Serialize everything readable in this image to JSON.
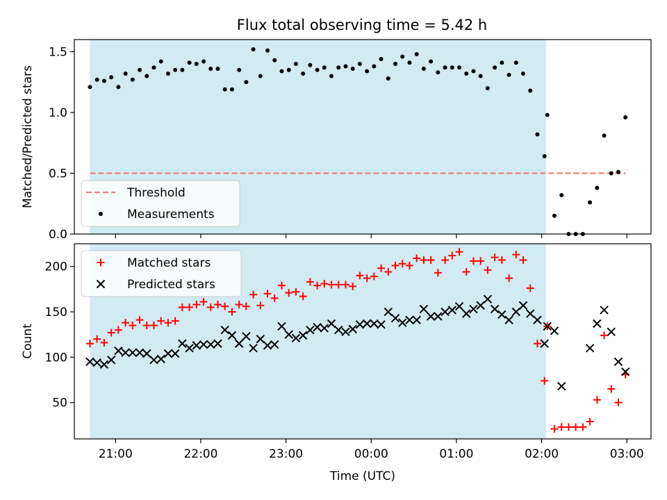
{
  "title": "Flux total observing time = 5.42 h",
  "chart_data": [
    {
      "type": "scatter",
      "ylabel": "Matched/Predicted stars",
      "xlabel": "",
      "xlim": [
        "20:31",
        "03:17"
      ],
      "ylim": [
        0,
        1.6
      ],
      "yticks": [
        0.0,
        0.5,
        1.0,
        1.5
      ],
      "ytick_labels": [
        "0.0",
        "0.5",
        "1.0",
        "1.5"
      ],
      "shaded_span": [
        "20:42",
        "02:03"
      ],
      "shaded_color": "#add8e6",
      "threshold": {
        "name": "Threshold",
        "value": 0.5,
        "x_range": [
          "20:42",
          "02:59"
        ],
        "color": "#f08080",
        "style": "dashed"
      },
      "legend": {
        "placement": "lower-left",
        "entries": [
          "Threshold",
          "Measurements"
        ]
      },
      "series": [
        {
          "name": "Measurements",
          "marker": "dot",
          "color": "#000000",
          "points": [
            [
              "20:42",
              1.21
            ],
            [
              "20:47",
              1.27
            ],
            [
              "20:52",
              1.26
            ],
            [
              "20:57",
              1.29
            ],
            [
              "21:02",
              1.21
            ],
            [
              "21:07",
              1.32
            ],
            [
              "21:12",
              1.27
            ],
            [
              "21:17",
              1.35
            ],
            [
              "21:22",
              1.3
            ],
            [
              "21:27",
              1.37
            ],
            [
              "21:32",
              1.42
            ],
            [
              "21:37",
              1.32
            ],
            [
              "21:42",
              1.35
            ],
            [
              "21:47",
              1.35
            ],
            [
              "21:52",
              1.41
            ],
            [
              "21:57",
              1.4
            ],
            [
              "22:02",
              1.42
            ],
            [
              "22:07",
              1.36
            ],
            [
              "22:12",
              1.36
            ],
            [
              "22:17",
              1.19
            ],
            [
              "22:22",
              1.19
            ],
            [
              "22:27",
              1.35
            ],
            [
              "22:32",
              1.25
            ],
            [
              "22:37",
              1.52
            ],
            [
              "22:42",
              1.3
            ],
            [
              "22:47",
              1.51
            ],
            [
              "22:52",
              1.43
            ],
            [
              "22:57",
              1.34
            ],
            [
              "23:02",
              1.35
            ],
            [
              "23:07",
              1.4
            ],
            [
              "23:12",
              1.32
            ],
            [
              "23:17",
              1.39
            ],
            [
              "23:22",
              1.35
            ],
            [
              "23:27",
              1.37
            ],
            [
              "23:32",
              1.3
            ],
            [
              "23:37",
              1.37
            ],
            [
              "23:42",
              1.38
            ],
            [
              "23:47",
              1.36
            ],
            [
              "23:52",
              1.4
            ],
            [
              "23:57",
              1.34
            ],
            [
              "00:02",
              1.38
            ],
            [
              "00:07",
              1.44
            ],
            [
              "00:12",
              1.28
            ],
            [
              "00:17",
              1.4
            ],
            [
              "00:22",
              1.46
            ],
            [
              "00:27",
              1.41
            ],
            [
              "00:32",
              1.48
            ],
            [
              "00:37",
              1.36
            ],
            [
              "00:42",
              1.42
            ],
            [
              "00:47",
              1.33
            ],
            [
              "00:52",
              1.37
            ],
            [
              "00:57",
              1.37
            ],
            [
              "01:02",
              1.37
            ],
            [
              "01:07",
              1.32
            ],
            [
              "01:12",
              1.34
            ],
            [
              "01:17",
              1.3
            ],
            [
              "01:22",
              1.2
            ],
            [
              "01:27",
              1.37
            ],
            [
              "01:32",
              1.41
            ],
            [
              "01:37",
              1.31
            ],
            [
              "01:42",
              1.41
            ],
            [
              "01:47",
              1.32
            ],
            [
              "01:52",
              1.18
            ],
            [
              "01:57",
              0.82
            ],
            [
              "02:02",
              0.64
            ],
            [
              "02:04",
              0.98
            ],
            [
              "02:09",
              0.15
            ],
            [
              "02:14",
              0.32
            ],
            [
              "02:19",
              0.0
            ],
            [
              "02:24",
              0.0
            ],
            [
              "02:29",
              0.0
            ],
            [
              "02:34",
              0.26
            ],
            [
              "02:39",
              0.38
            ],
            [
              "02:44",
              0.81
            ],
            [
              "02:49",
              0.5
            ],
            [
              "02:54",
              0.51
            ],
            [
              "02:59",
              0.96
            ]
          ]
        }
      ]
    },
    {
      "type": "scatter",
      "ylabel": "Count",
      "xlabel": "Time (UTC)",
      "xlim": [
        "20:31",
        "03:17"
      ],
      "ylim": [
        10,
        225
      ],
      "yticks": [
        50,
        100,
        150,
        200
      ],
      "ytick_labels": [
        "50",
        "100",
        "150",
        "200"
      ],
      "xticks": [
        "21:00",
        "22:00",
        "23:00",
        "00:00",
        "01:00",
        "02:00",
        "03:00"
      ],
      "xtick_labels": [
        "21:00",
        "22:00",
        "23:00",
        "00:00",
        "01:00",
        "02:00",
        "03:00"
      ],
      "shaded_span": [
        "20:42",
        "02:03"
      ],
      "shaded_color": "#add8e6",
      "legend": {
        "placement": "upper-left",
        "entries": [
          "Matched stars",
          "Predicted stars"
        ]
      },
      "series": [
        {
          "name": "Matched stars",
          "marker": "plus",
          "color": "#ff0000",
          "points": [
            [
              "20:42",
              115
            ],
            [
              "20:47",
              120
            ],
            [
              "20:52",
              116
            ],
            [
              "20:57",
              127
            ],
            [
              "21:02",
              130
            ],
            [
              "21:07",
              138
            ],
            [
              "21:12",
              135
            ],
            [
              "21:17",
              141
            ],
            [
              "21:22",
              135
            ],
            [
              "21:27",
              135
            ],
            [
              "21:32",
              140
            ],
            [
              "21:37",
              138
            ],
            [
              "21:42",
              140
            ],
            [
              "21:47",
              155
            ],
            [
              "21:52",
              155
            ],
            [
              "21:57",
              158
            ],
            [
              "22:02",
              161
            ],
            [
              "22:07",
              155
            ],
            [
              "22:12",
              158
            ],
            [
              "22:17",
              156
            ],
            [
              "22:22",
              150
            ],
            [
              "22:27",
              158
            ],
            [
              "22:32",
              156
            ],
            [
              "22:37",
              169
            ],
            [
              "22:42",
              157
            ],
            [
              "22:47",
              170
            ],
            [
              "22:52",
              165
            ],
            [
              "22:57",
              179
            ],
            [
              "23:02",
              171
            ],
            [
              "23:07",
              172
            ],
            [
              "23:12",
              167
            ],
            [
              "23:17",
              183
            ],
            [
              "23:22",
              179
            ],
            [
              "23:27",
              181
            ],
            [
              "23:32",
              180
            ],
            [
              "23:37",
              180
            ],
            [
              "23:42",
              180
            ],
            [
              "23:47",
              178
            ],
            [
              "23:52",
              190
            ],
            [
              "23:57",
              187
            ],
            [
              "00:02",
              189
            ],
            [
              "00:07",
              198
            ],
            [
              "00:12",
              194
            ],
            [
              "00:17",
              201
            ],
            [
              "00:22",
              203
            ],
            [
              "00:27",
              201
            ],
            [
              "00:32",
              209
            ],
            [
              "00:37",
              207
            ],
            [
              "00:42",
              207
            ],
            [
              "00:47",
              193
            ],
            [
              "00:52",
              207
            ],
            [
              "00:57",
              212
            ],
            [
              "01:02",
              216
            ],
            [
              "01:07",
              194
            ],
            [
              "01:12",
              206
            ],
            [
              "01:17",
              206
            ],
            [
              "01:22",
              196
            ],
            [
              "01:27",
              210
            ],
            [
              "01:32",
              207
            ],
            [
              "01:37",
              187
            ],
            [
              "01:42",
              213
            ],
            [
              "01:47",
              207
            ],
            [
              "01:52",
              176
            ],
            [
              "01:57",
              115
            ],
            [
              "02:02",
              74
            ],
            [
              "02:04",
              134
            ],
            [
              "02:09",
              21
            ],
            [
              "02:14",
              23
            ],
            [
              "02:19",
              23
            ],
            [
              "02:24",
              23
            ],
            [
              "02:29",
              23
            ],
            [
              "02:34",
              29
            ],
            [
              "02:39",
              53
            ],
            [
              "02:44",
              124
            ],
            [
              "02:49",
              65
            ],
            [
              "02:54",
              50
            ],
            [
              "02:59",
              81
            ]
          ]
        },
        {
          "name": "Predicted stars",
          "marker": "x",
          "color": "#000000",
          "points": [
            [
              "20:42",
              95
            ],
            [
              "20:47",
              94
            ],
            [
              "20:52",
              92
            ],
            [
              "20:57",
              97
            ],
            [
              "21:02",
              107
            ],
            [
              "21:07",
              105
            ],
            [
              "21:12",
              105
            ],
            [
              "21:17",
              105
            ],
            [
              "21:22",
              104
            ],
            [
              "21:27",
              97
            ],
            [
              "21:32",
              98
            ],
            [
              "21:37",
              104
            ],
            [
              "21:42",
              104
            ],
            [
              "21:47",
              115
            ],
            [
              "21:52",
              110
            ],
            [
              "21:57",
              113
            ],
            [
              "22:02",
              114
            ],
            [
              "22:07",
              114
            ],
            [
              "22:12",
              115
            ],
            [
              "22:17",
              130
            ],
            [
              "22:22",
              124
            ],
            [
              "22:27",
              115
            ],
            [
              "22:32",
              123
            ],
            [
              "22:37",
              110
            ],
            [
              "22:42",
              120
            ],
            [
              "22:47",
              113
            ],
            [
              "22:52",
              114
            ],
            [
              "22:57",
              134
            ],
            [
              "23:02",
              125
            ],
            [
              "23:07",
              121
            ],
            [
              "23:12",
              124
            ],
            [
              "23:17",
              130
            ],
            [
              "23:22",
              133
            ],
            [
              "23:27",
              132
            ],
            [
              "23:32",
              137
            ],
            [
              "23:37",
              130
            ],
            [
              "23:42",
              128
            ],
            [
              "23:47",
              131
            ],
            [
              "23:52",
              136
            ],
            [
              "23:57",
              137
            ],
            [
              "00:02",
              137
            ],
            [
              "00:07",
              136
            ],
            [
              "00:12",
              150
            ],
            [
              "00:17",
              143
            ],
            [
              "00:22",
              138
            ],
            [
              "00:27",
              141
            ],
            [
              "00:32",
              141
            ],
            [
              "00:37",
              153
            ],
            [
              "00:42",
              145
            ],
            [
              "00:47",
              145
            ],
            [
              "00:52",
              150
            ],
            [
              "00:57",
              152
            ],
            [
              "01:02",
              156
            ],
            [
              "01:07",
              148
            ],
            [
              "01:12",
              153
            ],
            [
              "01:17",
              157
            ],
            [
              "01:22",
              164
            ],
            [
              "01:27",
              153
            ],
            [
              "01:32",
              147
            ],
            [
              "01:37",
              141
            ],
            [
              "01:42",
              150
            ],
            [
              "01:47",
              157
            ],
            [
              "01:52",
              148
            ],
            [
              "01:57",
              141
            ],
            [
              "02:02",
              115
            ],
            [
              "02:04",
              134
            ],
            [
              "02:09",
              129
            ],
            [
              "02:14",
              68
            ],
            [
              "02:34",
              110
            ],
            [
              "02:39",
              137
            ],
            [
              "02:44",
              152
            ],
            [
              "02:49",
              128
            ],
            [
              "02:54",
              95
            ],
            [
              "02:59",
              84
            ]
          ]
        }
      ]
    }
  ]
}
